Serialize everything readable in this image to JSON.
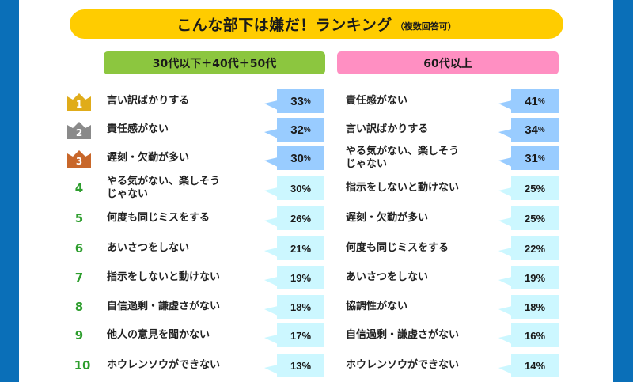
{
  "title": {
    "main": "こんな部下は嫌だ！ランキング",
    "sub": "（複数回答可）"
  },
  "colors": {
    "frame": "#0a6fb8",
    "title_bar": "#ffcc00",
    "left_header": "#8cc63f",
    "right_header": "#ff8fc2",
    "top3_bubble": "#99ccff",
    "rest_bubble": "#ccf7ff",
    "rank_number": "#2e9e2e",
    "crown_gold": "#e0ac1a",
    "crown_silver": "#8a8a8a",
    "crown_bronze": "#c8672a"
  },
  "left": {
    "header": "30代以下＋40代＋50代",
    "rows": [
      {
        "rank": "1",
        "label": "言い訳ばかりする",
        "value": "33",
        "unit": "%"
      },
      {
        "rank": "2",
        "label": "責任感がない",
        "value": "32",
        "unit": "%"
      },
      {
        "rank": "3",
        "label": "遅刻・欠勤が多い",
        "value": "30",
        "unit": "%"
      },
      {
        "rank": "4",
        "label": "やる気がない、楽しそう\nじゃない",
        "value": "30%"
      },
      {
        "rank": "5",
        "label": "何度も同じミスをする",
        "value": "26%"
      },
      {
        "rank": "6",
        "label": "あいさつをしない",
        "value": "21%"
      },
      {
        "rank": "7",
        "label": "指示をしないと動けない",
        "value": "19%"
      },
      {
        "rank": "8",
        "label": "自信過剰・謙虚さがない",
        "value": "18%"
      },
      {
        "rank": "9",
        "label": "他人の意見を聞かない",
        "value": "17%"
      },
      {
        "rank": "10",
        "label": "ホウレンソウができない",
        "value": "13%"
      }
    ]
  },
  "right": {
    "header": "60代以上",
    "rows": [
      {
        "label": "責任感がない",
        "value": "41",
        "unit": "%"
      },
      {
        "label": "言い訳ばかりする",
        "value": "34",
        "unit": "%"
      },
      {
        "label": "やる気がない、楽しそう\nじゃない",
        "value": "31",
        "unit": "%"
      },
      {
        "label": "指示をしないと動けない",
        "value": "25%"
      },
      {
        "label": "遅刻・欠勤が多い",
        "value": "25%"
      },
      {
        "label": "何度も同じミスをする",
        "value": "22%"
      },
      {
        "label": "あいさつをしない",
        "value": "19%"
      },
      {
        "label": "協調性がない",
        "value": "18%"
      },
      {
        "label": "自信過剰・謙虚さがない",
        "value": "16%"
      },
      {
        "label": "ホウレンソウができない",
        "value": "14%"
      }
    ]
  },
  "chart_data": [
    {
      "type": "table",
      "title": "こんな部下は嫌だ！ランキング（複数回答可）",
      "series_name": "30代以下＋40代＋50代",
      "categories": [
        "言い訳ばかりする",
        "責任感がない",
        "遅刻・欠勤が多い",
        "やる気がない、楽しそうじゃない",
        "何度も同じミスをする",
        "あいさつをしない",
        "指示をしないと動けない",
        "自信過剰・謙虚さがない",
        "他人の意見を聞かない",
        "ホウレンソウができない"
      ],
      "values": [
        33,
        32,
        30,
        30,
        26,
        21,
        19,
        18,
        17,
        13
      ],
      "unit": "%"
    },
    {
      "type": "table",
      "title": "こんな部下は嫌だ！ランキング（複数回答可）",
      "series_name": "60代以上",
      "categories": [
        "責任感がない",
        "言い訳ばかりする",
        "やる気がない、楽しそうじゃない",
        "指示をしないと動けない",
        "遅刻・欠勤が多い",
        "何度も同じミスをする",
        "あいさつをしない",
        "協調性がない",
        "自信過剰・謙虚さがない",
        "ホウレンソウができない"
      ],
      "values": [
        41,
        34,
        31,
        25,
        25,
        22,
        19,
        18,
        16,
        14
      ],
      "unit": "%"
    }
  ]
}
